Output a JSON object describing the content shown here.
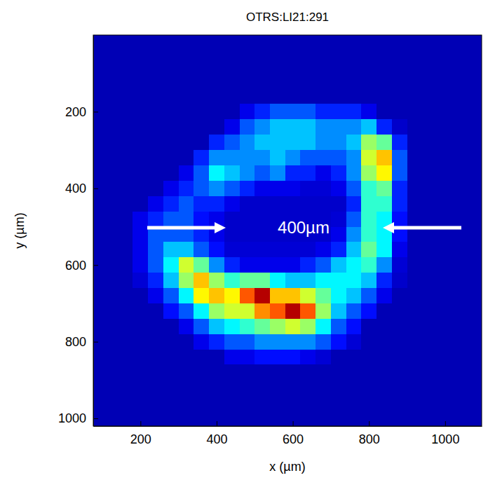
{
  "chart_data": {
    "type": "heatmap",
    "title": "OTRS:LI21:291",
    "x_label": "x (µm)",
    "y_label": "y (µm)",
    "xlim": [
      76,
      1096
    ],
    "ylim": [
      0,
      1020
    ],
    "xticks": [
      200,
      400,
      600,
      800,
      1000
    ],
    "yticks": [
      200,
      400,
      600,
      800,
      1000
    ],
    "zlim": [
      0.5,
      10
    ],
    "annotations": [
      {
        "text": "400µm"
      }
    ],
    "x": [
      80,
      120,
      160,
      200,
      240,
      280,
      320,
      360,
      400,
      440,
      480,
      520,
      560,
      600,
      640,
      680,
      720,
      760,
      800,
      840,
      880,
      920,
      960,
      1000,
      1040,
      1080
    ],
    "y": [
      0,
      40,
      80,
      120,
      160,
      200,
      240,
      280,
      320,
      360,
      400,
      440,
      480,
      520,
      560,
      600,
      640,
      680,
      720,
      760,
      800,
      840,
      880,
      920,
      960,
      1000
    ],
    "cells": [
      [
        1,
        1,
        1,
        1,
        1,
        1,
        1,
        1,
        1,
        1,
        1,
        1,
        1,
        1,
        1,
        1,
        1,
        1,
        1,
        1,
        1,
        1,
        1,
        1,
        1,
        1
      ],
      [
        1,
        1,
        1,
        1,
        1,
        1,
        1,
        1,
        1,
        1,
        1,
        1,
        1,
        1,
        1,
        1,
        1,
        1,
        1,
        1,
        1,
        1,
        1,
        1,
        1,
        1
      ],
      [
        1,
        1,
        1,
        1,
        1,
        1,
        1,
        1,
        1,
        1,
        1,
        1,
        1,
        1,
        1,
        1,
        1,
        1,
        1,
        1,
        1,
        1,
        1,
        1,
        1,
        1
      ],
      [
        1,
        1,
        1,
        1,
        1,
        1,
        1,
        1,
        1,
        1,
        1,
        1,
        1,
        1,
        1,
        1,
        1,
        1,
        1,
        1,
        1,
        1,
        1,
        1,
        1,
        1
      ],
      [
        1,
        1,
        1,
        1,
        1,
        1,
        1,
        1,
        1,
        1,
        1,
        1,
        1,
        1,
        1,
        1,
        1,
        1,
        1,
        1,
        1,
        1,
        1,
        1,
        1,
        1
      ],
      [
        1,
        1,
        1,
        1,
        1,
        1,
        1,
        1,
        1,
        1,
        1.5,
        2,
        2.5,
        2.5,
        2.5,
        2,
        2,
        2,
        1.5,
        1,
        1,
        1,
        1,
        1,
        1,
        1
      ],
      [
        1,
        1,
        1,
        1,
        1,
        1,
        1,
        1,
        1,
        1.5,
        2.5,
        3,
        3.5,
        3.5,
        3.5,
        3,
        3,
        3,
        3.5,
        2,
        1.2,
        1,
        1,
        1,
        1,
        1
      ],
      [
        1,
        1,
        1,
        1,
        1,
        1,
        1,
        1,
        2,
        2.5,
        3,
        3.5,
        3.5,
        3.5,
        3.5,
        3,
        3,
        3.5,
        5.5,
        5,
        2,
        1,
        1,
        1,
        1,
        1
      ],
      [
        1,
        1,
        1,
        1,
        1,
        1,
        1,
        2,
        3,
        3,
        3,
        3,
        3.5,
        3,
        2.5,
        2.5,
        2.5,
        3,
        6,
        7,
        2.5,
        1,
        1,
        1,
        1,
        1
      ],
      [
        1,
        1,
        1,
        1,
        1,
        1,
        1.5,
        2.5,
        4,
        3.5,
        3,
        2.5,
        3,
        2,
        2,
        1.5,
        2,
        3,
        5.5,
        6.5,
        2.5,
        1,
        1,
        1,
        1,
        1
      ],
      [
        1,
        1,
        1,
        1,
        1,
        1.5,
        2,
        2.5,
        3,
        2.5,
        2,
        1.5,
        1.5,
        1.5,
        1.3,
        1.3,
        1.5,
        2.5,
        4.5,
        5,
        2,
        1,
        1,
        1,
        1,
        1
      ],
      [
        1,
        1,
        1,
        1,
        1.5,
        2,
        2.5,
        2,
        2,
        1.5,
        1.2,
        1.2,
        1.2,
        1.2,
        1.2,
        1.2,
        1.2,
        2,
        4.5,
        4.5,
        2,
        1,
        1,
        1,
        1,
        1
      ],
      [
        1,
        1,
        1,
        1.5,
        2,
        2.5,
        2.5,
        1.8,
        1.5,
        1.2,
        1.2,
        1.2,
        1.2,
        1.2,
        1.2,
        1.2,
        1.3,
        2.5,
        4.5,
        4,
        1.8,
        1,
        1,
        1,
        1,
        1
      ],
      [
        1,
        1,
        1,
        1.5,
        2.5,
        2.5,
        2.5,
        2,
        1.5,
        1.2,
        1.2,
        1.2,
        1.2,
        1.2,
        1.2,
        1.2,
        1.5,
        3,
        4.5,
        4,
        1.8,
        1,
        1,
        1,
        1,
        1
      ],
      [
        1,
        1,
        1,
        1.5,
        2.5,
        3.5,
        3.5,
        2.5,
        1.8,
        1.3,
        1.3,
        1.3,
        1.3,
        1.3,
        1.3,
        1.5,
        2,
        3.5,
        5,
        4,
        1.5,
        1,
        1,
        1,
        1,
        1
      ],
      [
        1,
        1,
        1,
        1.5,
        2.5,
        4,
        6,
        5,
        3,
        2,
        1.5,
        1.5,
        1.5,
        1.5,
        2,
        2.5,
        3.5,
        4,
        4.5,
        3,
        1.3,
        1,
        1,
        1,
        1,
        1
      ],
      [
        1,
        1,
        1,
        1.3,
        2,
        3.5,
        5.5,
        7,
        5.5,
        4.5,
        5,
        5,
        4,
        3.5,
        3.5,
        4,
        4,
        4,
        3.5,
        2,
        1.2,
        1,
        1,
        1,
        1,
        1
      ],
      [
        1,
        1,
        1,
        1,
        1.5,
        2.5,
        4,
        6.5,
        7,
        6.5,
        8,
        9.5,
        7,
        7,
        6,
        5,
        4,
        3.5,
        2.5,
        1.5,
        1,
        1,
        1,
        1,
        1,
        1
      ],
      [
        1,
        1,
        1,
        1,
        1,
        1.8,
        2.5,
        4,
        5.5,
        6,
        6,
        7.5,
        8,
        9.5,
        8,
        5.5,
        3.5,
        2.5,
        1.8,
        1,
        1,
        1,
        1,
        1,
        1,
        1
      ],
      [
        1,
        1,
        1,
        1,
        1,
        1,
        1.5,
        2.5,
        3.5,
        4,
        4.5,
        5,
        5.5,
        6,
        5.5,
        4,
        2.5,
        1.8,
        1,
        1,
        1,
        1,
        1,
        1,
        1,
        1
      ],
      [
        1,
        1,
        1,
        1,
        1,
        1,
        1,
        1.5,
        2,
        2.5,
        2.5,
        3,
        3,
        3,
        3,
        2.5,
        1.8,
        1.3,
        1,
        1,
        1,
        1,
        1,
        1,
        1,
        1
      ],
      [
        1,
        1,
        1,
        1,
        1,
        1,
        1,
        1,
        1,
        1.5,
        1.5,
        1.8,
        1.8,
        1.8,
        1.5,
        1.3,
        1,
        1,
        1,
        1,
        1,
        1,
        1,
        1,
        1,
        1
      ],
      [
        1,
        1,
        1,
        1,
        1,
        1,
        1,
        1,
        1,
        1,
        1,
        1,
        1,
        1,
        1,
        1,
        1,
        1,
        1,
        1,
        1,
        1,
        1,
        1,
        1,
        1
      ],
      [
        1,
        1,
        1,
        1,
        1,
        1,
        1,
        1,
        1,
        1,
        1,
        1,
        1,
        1,
        1,
        1,
        1,
        1,
        1,
        1,
        1,
        1,
        1,
        1,
        1,
        1
      ],
      [
        1,
        1,
        1,
        1,
        1,
        1,
        1,
        1,
        1,
        1,
        1,
        1,
        1,
        1,
        1,
        1,
        1,
        1,
        1,
        1,
        1,
        1,
        1,
        1,
        1,
        1
      ],
      [
        1,
        1,
        1,
        1,
        1,
        1,
        1,
        1,
        1,
        1,
        1,
        1,
        1,
        1,
        1,
        1,
        1,
        1,
        1,
        1,
        1,
        1,
        1,
        1,
        1,
        1
      ]
    ]
  }
}
